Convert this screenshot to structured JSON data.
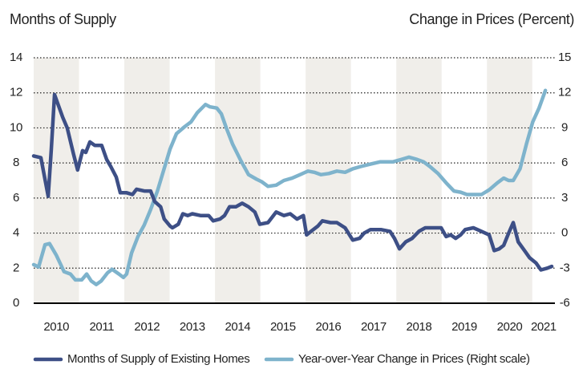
{
  "chart_data": {
    "type": "line",
    "title": "Months of Supply",
    "y2_title": "Change in Prices (Percent)",
    "xlim": [
      2010,
      2021.5
    ],
    "xticks": [
      2010,
      2011,
      2012,
      2013,
      2014,
      2015,
      2016,
      2017,
      2018,
      2019,
      2020,
      2021
    ],
    "ylim": [
      0,
      14
    ],
    "yticks": [
      0,
      2,
      4,
      6,
      8,
      10,
      12,
      14
    ],
    "y2lim": [
      -6,
      15
    ],
    "y2ticks": [
      -6,
      -3,
      0,
      3,
      6,
      9,
      12,
      15
    ],
    "grid": true,
    "legend": "bottom",
    "band_color": "#f0eeea",
    "series": [
      {
        "name": "Months of Supply of Existing Homes",
        "color": "#3d4f86",
        "axis": "y",
        "x": [
          2010,
          2010.16,
          2010.32,
          2010.39,
          2010.46,
          2010.64,
          2010.74,
          2010.88,
          2010.97,
          2011.08,
          2011.15,
          2011.24,
          2011.35,
          2011.5,
          2011.61,
          2011.7,
          2011.82,
          2011.91,
          2012.05,
          2012.18,
          2012.27,
          2012.44,
          2012.58,
          2012.67,
          2012.8,
          2012.88,
          2013.01,
          2013.06,
          2013.19,
          2013.29,
          2013.4,
          2013.5,
          2013.68,
          2013.86,
          2013.96,
          2014.11,
          2014.21,
          2014.32,
          2014.46,
          2014.6,
          2014.74,
          2014.88,
          2014.99,
          2015.17,
          2015.35,
          2015.52,
          2015.66,
          2015.81,
          2015.95,
          2016.02,
          2016.12,
          2016.27,
          2016.37,
          2016.55,
          2016.69,
          2016.87,
          2017.04,
          2017.19,
          2017.29,
          2017.43,
          2017.66,
          2017.86,
          2017.96,
          2018.07,
          2018.21,
          2018.35,
          2018.5,
          2018.64,
          2018.88,
          2018.99,
          2019.1,
          2019.2,
          2019.31,
          2019.42,
          2019.52,
          2019.7,
          2019.88,
          2020.05,
          2020.16,
          2020.27,
          2020.37,
          2020.48,
          2020.58,
          2020.69,
          2020.83,
          2020.94,
          2021.08,
          2021.19,
          2021.33,
          2021.43
        ],
        "values": [
          8.4,
          8.3,
          6.1,
          8.8,
          11.9,
          10.6,
          10.0,
          8.5,
          7.6,
          8.7,
          8.6,
          9.2,
          9.0,
          9.0,
          8.2,
          7.8,
          7.2,
          6.3,
          6.3,
          6.2,
          6.5,
          6.4,
          6.4,
          5.8,
          5.5,
          4.8,
          4.4,
          4.3,
          4.5,
          5.1,
          5.0,
          5.1,
          5.0,
          5.0,
          4.7,
          4.8,
          5.0,
          5.5,
          5.5,
          5.7,
          5.5,
          5.2,
          4.5,
          4.6,
          5.2,
          5.0,
          5.1,
          4.8,
          5.0,
          3.9,
          4.1,
          4.4,
          4.7,
          4.6,
          4.6,
          4.3,
          3.6,
          3.7,
          4.0,
          4.2,
          4.2,
          4.1,
          3.7,
          3.1,
          3.5,
          3.7,
          4.1,
          4.3,
          4.3,
          4.3,
          3.8,
          3.9,
          3.7,
          3.9,
          4.2,
          4.3,
          4.1,
          3.9,
          3.0,
          3.1,
          3.3,
          4.0,
          4.6,
          3.5,
          3.0,
          2.6,
          2.3,
          1.9,
          2.0,
          2.1
        ]
      },
      {
        "name": "Year-over-Year Change in Prices (Right scale)",
        "color": "#7eb3cc",
        "axis": "y2",
        "x": [
          2010,
          2010.11,
          2010.25,
          2010.35,
          2010.5,
          2010.67,
          2010.81,
          2010.92,
          2011.06,
          2011.17,
          2011.27,
          2011.38,
          2011.49,
          2011.63,
          2011.73,
          2011.88,
          2011.98,
          2012.05,
          2012.16,
          2012.3,
          2012.44,
          2012.58,
          2012.73,
          2012.87,
          2013.01,
          2013.15,
          2013.33,
          2013.47,
          2013.61,
          2013.79,
          2013.89,
          2014.04,
          2014.14,
          2014.25,
          2014.39,
          2014.57,
          2014.74,
          2014.92,
          2015.03,
          2015.17,
          2015.35,
          2015.52,
          2015.7,
          2015.88,
          2016.05,
          2016.19,
          2016.34,
          2016.51,
          2016.69,
          2016.87,
          2017.04,
          2017.22,
          2017.43,
          2017.65,
          2017.93,
          2018.11,
          2018.28,
          2018.46,
          2018.6,
          2018.74,
          2018.92,
          2019.1,
          2019.27,
          2019.42,
          2019.56,
          2019.7,
          2019.88,
          2020.05,
          2020.23,
          2020.37,
          2020.48,
          2020.58,
          2020.73,
          2020.87,
          2021.01,
          2021.15,
          2021.29
        ],
        "values": [
          -2.7,
          -2.9,
          -1.0,
          -0.9,
          -1.9,
          -3.3,
          -3.5,
          -4.0,
          -4.0,
          -3.5,
          -4.1,
          -4.4,
          -4.1,
          -3.4,
          -3.1,
          -3.5,
          -3.8,
          -3.5,
          -1.7,
          -0.3,
          0.7,
          2.0,
          3.6,
          5.4,
          7.2,
          8.5,
          9.1,
          9.5,
          10.3,
          11.0,
          10.8,
          10.7,
          10.2,
          9.0,
          7.6,
          6.2,
          5.0,
          4.6,
          4.4,
          4.0,
          4.1,
          4.5,
          4.7,
          5.0,
          5.3,
          5.2,
          5.0,
          5.1,
          5.3,
          5.2,
          5.5,
          5.7,
          5.9,
          6.1,
          6.1,
          6.3,
          6.5,
          6.3,
          6.1,
          5.7,
          5.1,
          4.3,
          3.6,
          3.5,
          3.3,
          3.3,
          3.3,
          3.7,
          4.3,
          4.7,
          4.5,
          4.5,
          5.5,
          7.6,
          9.5,
          10.7,
          12.2
        ]
      }
    ]
  }
}
